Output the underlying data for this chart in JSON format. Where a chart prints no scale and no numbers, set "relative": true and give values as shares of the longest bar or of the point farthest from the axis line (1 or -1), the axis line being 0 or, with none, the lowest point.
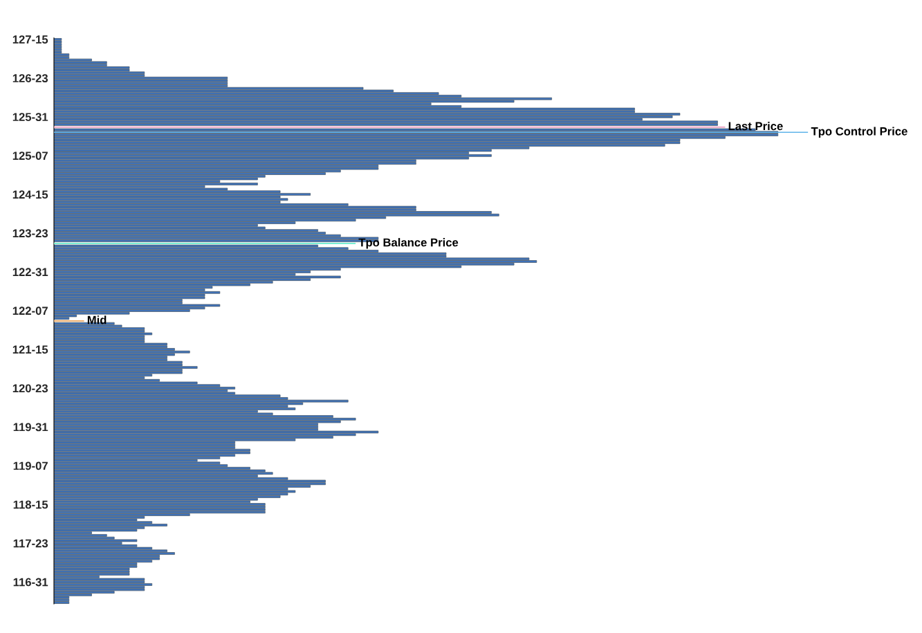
{
  "chart_data": {
    "type": "bar",
    "orientation": "horizontal",
    "relative": true,
    "categories": [
      "127-15",
      null,
      null,
      null,
      null,
      null,
      null,
      null,
      null,
      null,
      null,
      null,
      null,
      null,
      null,
      "126-23",
      null,
      null,
      null,
      null,
      null,
      null,
      null,
      null,
      null,
      null,
      null,
      null,
      null,
      null,
      "125-31",
      null,
      null,
      null,
      null,
      null,
      null,
      null,
      null,
      null,
      null,
      null,
      null,
      null,
      null,
      "125-07",
      null,
      null,
      null,
      null,
      null,
      null,
      null,
      null,
      null,
      null,
      null,
      null,
      null,
      null,
      "124-15",
      null,
      null,
      null,
      null,
      null,
      null,
      null,
      null,
      null,
      null,
      null,
      null,
      null,
      null,
      "123-23",
      null,
      null,
      null,
      null,
      null,
      null,
      null,
      null,
      null,
      null,
      null,
      null,
      null,
      null,
      "122-31",
      null,
      null,
      null,
      null,
      null,
      null,
      null,
      null,
      null,
      null,
      null,
      null,
      null,
      null,
      "122-07",
      null,
      null,
      null,
      null,
      null,
      null,
      null,
      null,
      null,
      null,
      null,
      null,
      null,
      null,
      "121-15",
      null,
      null,
      null,
      null,
      null,
      null,
      null,
      null,
      null,
      null,
      null,
      null,
      null,
      null,
      "120-23",
      null,
      null,
      null,
      null,
      null,
      null,
      null,
      null,
      null,
      null,
      null,
      null,
      null,
      null,
      "119-31",
      null,
      null,
      null,
      null,
      null,
      null,
      null,
      null,
      null,
      null,
      null,
      null,
      null,
      null,
      "119-07",
      null,
      null,
      null,
      null,
      null,
      null,
      null,
      null,
      null,
      null,
      null,
      null,
      null,
      null,
      "118-15",
      null,
      null,
      null,
      null,
      null,
      null,
      null,
      null,
      null,
      null,
      null,
      null,
      null,
      null,
      "117-23",
      null,
      null,
      null,
      null,
      null,
      null,
      null,
      null,
      null,
      null,
      null,
      null,
      null,
      null,
      "116-31",
      null,
      null,
      null,
      null,
      null,
      null,
      null,
      null
    ],
    "series": [
      {
        "color": "#3f72b8",
        "values": [
          0.01,
          0.01,
          0.01,
          0.01,
          0.01,
          0.01,
          0.02,
          0.02,
          0.05,
          0.07,
          0.07,
          0.1,
          0.1,
          0.12,
          0.12,
          0.23,
          0.23,
          0.23,
          0.23,
          0.41,
          0.45,
          0.51,
          0.54,
          0.66,
          0.61,
          0.5,
          0.54,
          0.77,
          0.77,
          0.83,
          0.82,
          0.78,
          0.88,
          0.88,
          null,
          0.93,
          0.96,
          0.96,
          0.89,
          0.83,
          0.83,
          0.81,
          0.63,
          0.58,
          0.55,
          0.58,
          0.55,
          0.48,
          0.48,
          0.43,
          0.43,
          0.38,
          0.36,
          0.28,
          0.27,
          0.22,
          0.27,
          0.2,
          0.23,
          0.3,
          0.34,
          0.3,
          0.31,
          0.3,
          0.39,
          0.48,
          0.48,
          0.58,
          0.59,
          0.44,
          0.4,
          0.32,
          0.27,
          0.28,
          0.35,
          0.36,
          0.38,
          0.43,
          0.43,
          null,
          0.35,
          0.39,
          0.43,
          0.52,
          0.52,
          0.63,
          0.64,
          0.61,
          0.54,
          0.38,
          0.34,
          0.32,
          0.38,
          0.34,
          0.29,
          0.26,
          0.21,
          0.2,
          0.22,
          0.2,
          0.2,
          0.17,
          0.17,
          0.22,
          0.2,
          0.18,
          0.1,
          0.03,
          0.02,
          null,
          0.08,
          0.09,
          0.12,
          0.12,
          0.13,
          0.12,
          0.12,
          0.12,
          0.15,
          0.15,
          0.16,
          0.18,
          0.16,
          0.15,
          0.15,
          0.17,
          0.17,
          0.19,
          0.17,
          0.17,
          0.13,
          0.12,
          0.14,
          0.19,
          0.22,
          0.24,
          0.23,
          0.24,
          0.3,
          0.31,
          0.39,
          0.33,
          0.31,
          0.32,
          0.27,
          0.29,
          0.37,
          0.4,
          0.38,
          0.35,
          0.35,
          0.35,
          0.43,
          0.4,
          0.37,
          0.32,
          0.24,
          0.24,
          0.24,
          0.26,
          0.26,
          0.24,
          0.22,
          0.19,
          0.22,
          0.23,
          0.26,
          0.28,
          0.29,
          0.27,
          0.31,
          0.36,
          0.36,
          0.34,
          0.31,
          0.32,
          0.31,
          0.3,
          0.27,
          0.26,
          0.28,
          0.28,
          0.28,
          0.28,
          0.18,
          0.12,
          0.11,
          0.13,
          0.15,
          0.12,
          0.11,
          0.05,
          0.07,
          0.08,
          0.11,
          0.09,
          0.11,
          0.13,
          0.15,
          0.16,
          0.14,
          0.14,
          0.13,
          0.11,
          0.11,
          0.1,
          0.1,
          0.1,
          0.06,
          0.12,
          0.12,
          0.13,
          0.12,
          0.12,
          0.08,
          0.05,
          0.02,
          0.02,
          0.02
        ]
      },
      {
        "name": "Last Price",
        "color": "#e88fb8",
        "values": [
          null,
          null,
          null,
          null,
          null,
          null,
          null,
          null,
          null,
          null,
          null,
          null,
          null,
          null,
          null,
          null,
          null,
          null,
          null,
          null,
          null,
          null,
          null,
          null,
          null,
          null,
          null,
          null,
          null,
          null,
          null,
          null,
          null,
          null,
          0.89,
          null,
          null,
          null,
          null,
          null,
          null,
          null,
          null,
          null,
          null,
          null,
          null,
          null,
          null,
          null,
          null,
          null,
          null,
          null,
          null,
          null,
          null,
          null,
          null,
          null,
          null,
          null,
          null,
          null,
          null,
          null,
          null,
          null,
          null,
          null,
          null,
          null,
          null,
          null,
          null,
          null,
          null,
          null,
          null,
          null,
          null,
          null,
          null,
          null,
          null,
          null,
          null,
          null,
          null,
          null,
          null,
          null,
          null,
          null,
          null,
          null,
          null,
          null,
          null,
          null,
          null,
          null,
          null,
          null,
          null,
          null,
          null,
          null,
          null,
          null,
          null,
          null,
          null,
          null,
          null,
          null,
          null,
          null,
          null,
          null,
          null,
          null,
          null,
          null,
          null,
          null,
          null,
          null,
          null,
          null,
          null,
          null,
          null,
          null,
          null,
          null,
          null,
          null,
          null,
          null,
          null,
          null,
          null,
          null,
          null,
          null,
          null,
          null,
          null,
          null,
          null,
          null,
          null,
          null,
          null,
          null,
          null,
          null,
          null,
          null,
          null,
          null,
          null,
          null,
          null,
          null,
          null,
          null,
          null,
          null,
          null,
          null,
          null,
          null,
          null,
          null,
          null,
          null,
          null,
          null,
          null,
          null,
          null,
          null,
          null,
          null,
          null,
          null,
          null,
          null,
          null,
          null,
          null,
          null,
          null,
          null,
          null,
          null,
          null,
          null,
          null,
          null,
          null,
          null,
          null,
          null,
          null,
          null,
          null,
          null,
          null,
          null,
          null,
          null,
          null,
          null,
          null,
          null,
          null
        ]
      },
      {
        "name": "Tpo Control Price",
        "color": "#5fb4ea",
        "values": [
          null,
          null,
          null,
          null,
          null,
          null,
          null,
          null,
          null,
          null,
          null,
          null,
          null,
          null,
          null,
          null,
          null,
          null,
          null,
          null,
          null,
          null,
          null,
          null,
          null,
          null,
          null,
          null,
          null,
          null,
          null,
          null,
          null,
          null,
          null,
          null,
          1.0,
          null,
          null,
          null,
          null,
          null,
          null,
          null,
          null,
          null,
          null,
          null,
          null,
          null,
          null,
          null,
          null,
          null,
          null,
          null,
          null,
          null,
          null,
          null,
          null,
          null,
          null,
          null,
          null,
          null,
          null,
          null,
          null,
          null,
          null,
          null,
          null,
          null,
          null,
          null,
          null,
          null,
          null,
          null,
          null,
          null,
          null,
          null,
          null,
          null,
          null,
          null,
          null,
          null,
          null,
          null,
          null,
          null,
          null,
          null,
          null,
          null,
          null,
          null,
          null,
          null,
          null,
          null,
          null,
          null,
          null,
          null,
          null,
          null,
          null,
          null,
          null,
          null,
          null,
          null,
          null,
          null,
          null,
          null,
          null,
          null,
          null,
          null,
          null,
          null,
          null,
          null,
          null,
          null,
          null,
          null,
          null,
          null,
          null,
          null,
          null,
          null,
          null,
          null,
          null,
          null,
          null,
          null,
          null,
          null,
          null,
          null,
          null,
          null,
          null,
          null,
          null,
          null,
          null,
          null,
          null,
          null,
          null,
          null,
          null,
          null,
          null,
          null,
          null,
          null,
          null,
          null,
          null,
          null,
          null,
          null,
          null,
          null,
          null,
          null,
          null,
          null,
          null,
          null,
          null,
          null,
          null,
          null,
          null,
          null,
          null,
          null,
          null,
          null,
          null,
          null,
          null,
          null,
          null,
          null,
          null,
          null,
          null,
          null,
          null,
          null,
          null,
          null,
          null,
          null,
          null,
          null,
          null,
          null,
          null,
          null,
          null,
          null,
          null,
          null,
          null,
          null,
          null
        ]
      },
      {
        "name": "Tpo Balance Price",
        "color": "#66eccc",
        "values": [
          null,
          null,
          null,
          null,
          null,
          null,
          null,
          null,
          null,
          null,
          null,
          null,
          null,
          null,
          null,
          null,
          null,
          null,
          null,
          null,
          null,
          null,
          null,
          null,
          null,
          null,
          null,
          null,
          null,
          null,
          null,
          null,
          null,
          null,
          null,
          null,
          null,
          null,
          null,
          null,
          null,
          null,
          null,
          null,
          null,
          null,
          null,
          null,
          null,
          null,
          null,
          null,
          null,
          null,
          null,
          null,
          null,
          null,
          null,
          null,
          null,
          null,
          null,
          null,
          null,
          null,
          null,
          null,
          null,
          null,
          null,
          null,
          null,
          null,
          null,
          null,
          null,
          null,
          null,
          0.4,
          null,
          null,
          null,
          null,
          null,
          null,
          null,
          null,
          null,
          null,
          null,
          null,
          null,
          null,
          null,
          null,
          null,
          null,
          null,
          null,
          null,
          null,
          null,
          null,
          null,
          null,
          null,
          null,
          null,
          null,
          null,
          null,
          null,
          null,
          null,
          null,
          null,
          null,
          null,
          null,
          null,
          null,
          null,
          null,
          null,
          null,
          null,
          null,
          null,
          null,
          null,
          null,
          null,
          null,
          null,
          null,
          null,
          null,
          null,
          null,
          null,
          null,
          null,
          null,
          null,
          null,
          null,
          null,
          null,
          null,
          null,
          null,
          null,
          null,
          null,
          null,
          null,
          null,
          null,
          null,
          null,
          null,
          null,
          null,
          null,
          null,
          null,
          null,
          null,
          null,
          null,
          null,
          null,
          null,
          null,
          null,
          null,
          null,
          null,
          null,
          null,
          null,
          null,
          null,
          null,
          null,
          null,
          null,
          null,
          null,
          null,
          null,
          null,
          null,
          null,
          null,
          null,
          null,
          null,
          null,
          null,
          null,
          null,
          null,
          null,
          null,
          null,
          null,
          null,
          null,
          null,
          null,
          null,
          null,
          null,
          null,
          null,
          null,
          null
        ]
      },
      {
        "name": "Mid",
        "color": "#eea860",
        "values": [
          null,
          null,
          null,
          null,
          null,
          null,
          null,
          null,
          null,
          null,
          null,
          null,
          null,
          null,
          null,
          null,
          null,
          null,
          null,
          null,
          null,
          null,
          null,
          null,
          null,
          null,
          null,
          null,
          null,
          null,
          null,
          null,
          null,
          null,
          null,
          null,
          null,
          null,
          null,
          null,
          null,
          null,
          null,
          null,
          null,
          null,
          null,
          null,
          null,
          null,
          null,
          null,
          null,
          null,
          null,
          null,
          null,
          null,
          null,
          null,
          null,
          null,
          null,
          null,
          null,
          null,
          null,
          null,
          null,
          null,
          null,
          null,
          null,
          null,
          null,
          null,
          null,
          null,
          null,
          null,
          null,
          null,
          null,
          null,
          null,
          null,
          null,
          null,
          null,
          null,
          null,
          null,
          null,
          null,
          null,
          null,
          null,
          null,
          null,
          null,
          null,
          null,
          null,
          null,
          null,
          null,
          null,
          null,
          null,
          0.04,
          null,
          null,
          null,
          null,
          null,
          null,
          null,
          null,
          null,
          null,
          null,
          null,
          null,
          null,
          null,
          null,
          null,
          null,
          null,
          null,
          null,
          null,
          null,
          null,
          null,
          null,
          null,
          null,
          null,
          null,
          null,
          null,
          null,
          null,
          null,
          null,
          null,
          null,
          null,
          null,
          null,
          null,
          null,
          null,
          null,
          null,
          null,
          null,
          null,
          null,
          null,
          null,
          null,
          null,
          null,
          null,
          null,
          null,
          null,
          null,
          null,
          null,
          null,
          null,
          null,
          null,
          null,
          null,
          null,
          null,
          null,
          null,
          null,
          null,
          null,
          null,
          null,
          null,
          null,
          null,
          null,
          null,
          null,
          null,
          null,
          null,
          null,
          null,
          null,
          null,
          null,
          null,
          null,
          null,
          null,
          null,
          null,
          null,
          null,
          null,
          null,
          null,
          null,
          null,
          null,
          null,
          null,
          null,
          null
        ]
      }
    ]
  }
}
